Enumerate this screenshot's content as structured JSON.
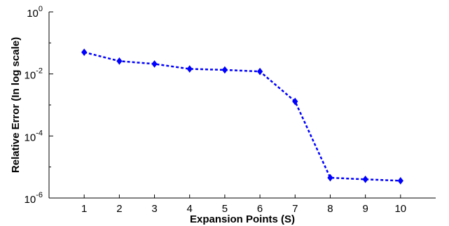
{
  "chart_data": {
    "type": "line",
    "title": "",
    "xlabel": "Expansion Points (S)",
    "ylabel": "Relative Error (In log scale)",
    "x": [
      1,
      2,
      3,
      4,
      5,
      6,
      7,
      8,
      9,
      10
    ],
    "xticks": [
      "1",
      "2",
      "3",
      "4",
      "5",
      "6",
      "7",
      "8",
      "9",
      "10"
    ],
    "xlim": [
      0,
      11
    ],
    "yscale": "log",
    "ylim": [
      1e-06,
      1
    ],
    "yticks": [
      {
        "value": 1,
        "base": "10",
        "exp": "0"
      },
      {
        "value": 0.01,
        "base": "10",
        "exp": "-2"
      },
      {
        "value": 0.0001,
        "base": "10",
        "exp": "-4"
      },
      {
        "value": 1e-06,
        "base": "10",
        "exp": "-6"
      }
    ],
    "grid": false,
    "legend": "none",
    "series": [
      {
        "values": [
          0.05,
          0.026,
          0.021,
          0.0145,
          0.0135,
          0.012,
          0.0013,
          4.5e-06,
          4e-06,
          3.6e-06
        ],
        "color": "#0000ff",
        "line_style": "dashed",
        "marker": "diamond"
      }
    ]
  }
}
